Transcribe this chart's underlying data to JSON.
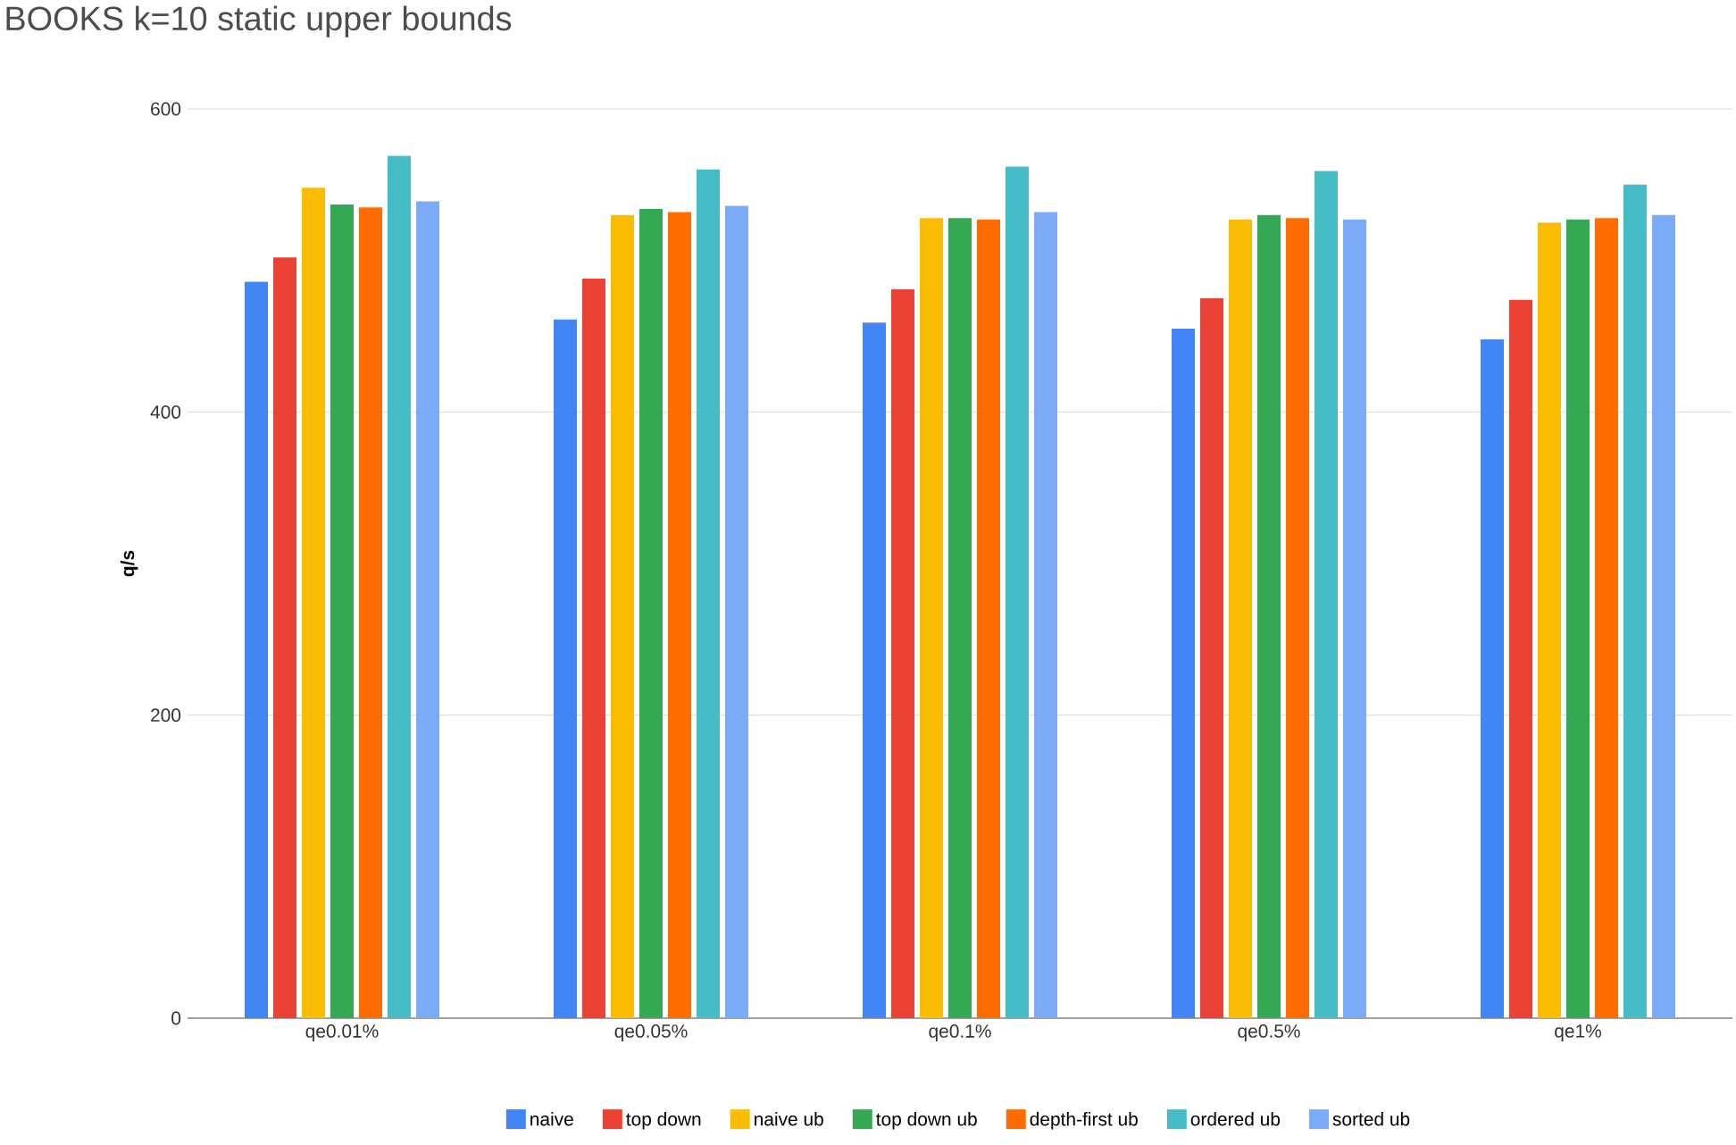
{
  "chart_data": {
    "type": "bar",
    "title": "BOOKS k=10 static upper bounds",
    "ylabel": "q/s",
    "categories": [
      "qe0.01%",
      "qe0.05%",
      "qe0.1%",
      "qe0.5%",
      "qe1%"
    ],
    "series": [
      {
        "name": "naive",
        "color": "#4285f4",
        "values": [
          486,
          461,
          459,
          455,
          448
        ]
      },
      {
        "name": "top down",
        "color": "#ea4335",
        "values": [
          502,
          488,
          481,
          475,
          474
        ]
      },
      {
        "name": "naive ub",
        "color": "#fbbc04",
        "values": [
          548,
          530,
          528,
          527,
          525
        ]
      },
      {
        "name": "top down ub",
        "color": "#34a853",
        "values": [
          537,
          534,
          528,
          530,
          527
        ]
      },
      {
        "name": "depth-first ub",
        "color": "#ff6d01",
        "values": [
          535,
          532,
          527,
          528,
          528
        ]
      },
      {
        "name": "ordered ub",
        "color": "#46bdc6",
        "values": [
          569,
          560,
          562,
          559,
          550
        ]
      },
      {
        "name": "sorted ub",
        "color": "#7baaf7",
        "values": [
          539,
          536,
          532,
          527,
          530
        ]
      }
    ],
    "ylim": [
      0,
      600
    ],
    "yticks": [
      0,
      200,
      400,
      600
    ],
    "grid": "y",
    "legend": "bottom"
  }
}
